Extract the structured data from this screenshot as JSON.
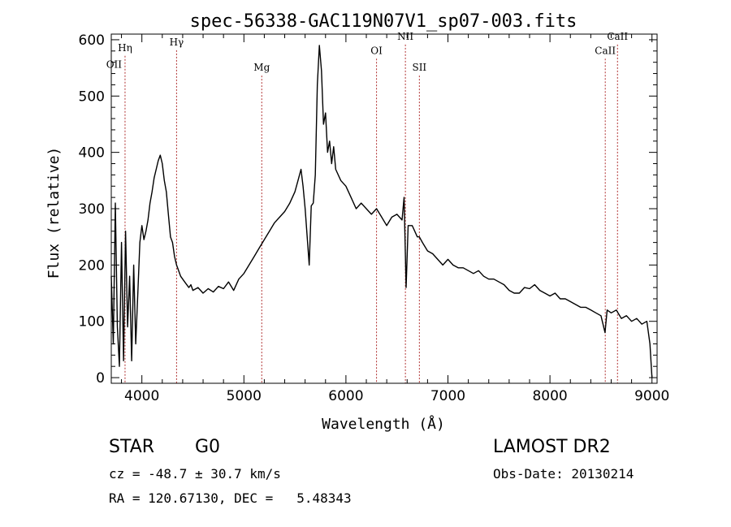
{
  "chart_data": {
    "type": "line",
    "title": "spec-56338-GAC119N07V1_sp07-003.fits",
    "xlabel": "Wavelength (Å)",
    "ylabel": "Flux (relative)",
    "xlim": [
      3700,
      9050
    ],
    "ylim": [
      -10,
      610
    ],
    "xticks": [
      4000,
      5000,
      6000,
      7000,
      8000,
      9000
    ],
    "yticks": [
      0,
      100,
      200,
      300,
      400,
      500,
      600
    ],
    "grid": false,
    "line_color": "#000000",
    "series": [
      {
        "x": [
          3700,
          3720,
          3740,
          3760,
          3780,
          3800,
          3820,
          3840,
          3860,
          3880,
          3900,
          3920,
          3940,
          3960,
          3980,
          4000,
          4020,
          4040,
          4060,
          4080,
          4100,
          4120,
          4140,
          4160,
          4180,
          4200,
          4220,
          4240,
          4260,
          4280,
          4300,
          4320,
          4340,
          4360,
          4380,
          4400,
          4420,
          4440,
          4460,
          4480,
          4500,
          4550,
          4600,
          4650,
          4700,
          4750,
          4800,
          4850,
          4900,
          4950,
          5000,
          5050,
          5100,
          5150,
          5200,
          5250,
          5300,
          5350,
          5400,
          5450,
          5500,
          5530,
          5560,
          5580,
          5600,
          5620,
          5640,
          5660,
          5680,
          5700,
          5720,
          5740,
          5760,
          5780,
          5800,
          5820,
          5840,
          5860,
          5880,
          5900,
          5950,
          6000,
          6050,
          6100,
          6150,
          6200,
          6250,
          6300,
          6350,
          6400,
          6450,
          6500,
          6550,
          6570,
          6590,
          6610,
          6650,
          6700,
          6720,
          6750,
          6800,
          6850,
          6900,
          6950,
          7000,
          7050,
          7100,
          7150,
          7200,
          7250,
          7300,
          7350,
          7400,
          7450,
          7500,
          7550,
          7600,
          7650,
          7700,
          7750,
          7800,
          7850,
          7900,
          7950,
          8000,
          8050,
          8100,
          8150,
          8200,
          8250,
          8300,
          8350,
          8400,
          8450,
          8500,
          8540,
          8560,
          8600,
          8650,
          8700,
          8750,
          8800,
          8850,
          8900,
          8950,
          8980,
          9000
        ],
        "values": [
          180,
          60,
          310,
          90,
          20,
          240,
          30,
          260,
          90,
          180,
          30,
          200,
          60,
          150,
          240,
          270,
          245,
          260,
          280,
          310,
          330,
          355,
          370,
          385,
          395,
          380,
          350,
          330,
          290,
          250,
          240,
          215,
          200,
          190,
          180,
          175,
          170,
          165,
          160,
          165,
          155,
          160,
          150,
          158,
          152,
          162,
          158,
          170,
          155,
          175,
          185,
          200,
          215,
          230,
          245,
          260,
          275,
          285,
          295,
          310,
          330,
          350,
          370,
          340,
          300,
          250,
          200,
          305,
          310,
          360,
          520,
          590,
          545,
          450,
          470,
          400,
          420,
          380,
          410,
          370,
          350,
          340,
          320,
          300,
          310,
          300,
          290,
          300,
          285,
          270,
          285,
          290,
          280,
          320,
          160,
          270,
          270,
          250,
          250,
          240,
          225,
          220,
          210,
          200,
          210,
          200,
          195,
          195,
          190,
          185,
          190,
          180,
          175,
          175,
          170,
          165,
          155,
          150,
          150,
          160,
          158,
          165,
          155,
          150,
          145,
          150,
          140,
          140,
          135,
          130,
          125,
          125,
          120,
          115,
          110,
          80,
          120,
          115,
          120,
          105,
          110,
          100,
          105,
          95,
          100,
          60,
          0
        ]
      }
    ],
    "annotations": [
      {
        "label": "OII",
        "x": 3727,
        "y": 550,
        "line": false
      },
      {
        "label": "Hη",
        "x": 3835,
        "y": 580,
        "line": true
      },
      {
        "label": "Hγ",
        "x": 4340,
        "y": 590,
        "line": true
      },
      {
        "label": "Mg",
        "x": 5175,
        "y": 545,
        "line": true
      },
      {
        "label": "OI",
        "x": 6300,
        "y": 575,
        "line": true
      },
      {
        "label": "NII",
        "x": 6583,
        "y": 600,
        "line": true
      },
      {
        "label": "SII",
        "x": 6720,
        "y": 545,
        "line": true
      },
      {
        "label": "CaII",
        "x": 8542,
        "y": 575,
        "line": true
      },
      {
        "label": "CaII",
        "x": 8662,
        "y": 600,
        "line": true
      }
    ]
  },
  "info": {
    "class_label": "STAR",
    "subclass": "G0",
    "survey": "LAMOST DR2",
    "redshift": "cz = -48.7 ± 30.7 km/s",
    "obs_date": "Obs-Date: 20130214",
    "coords": "RA = 120.67130, DEC =   5.48343"
  }
}
